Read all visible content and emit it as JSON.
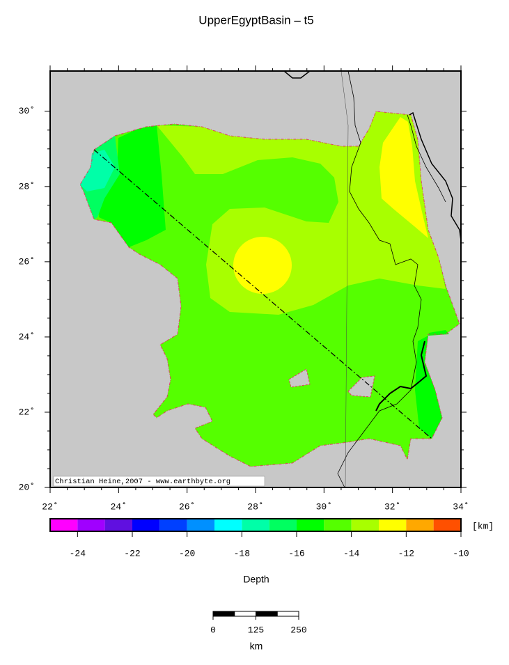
{
  "title": "UpperEgyptBasin – t5",
  "map": {
    "xlim": [
      22,
      34
    ],
    "ylim": [
      20,
      31.07
    ],
    "xticks": [
      {
        "value": 22,
        "label": "22˚"
      },
      {
        "value": 24,
        "label": "24˚"
      },
      {
        "value": 26,
        "label": "26˚"
      },
      {
        "value": 28,
        "label": "28˚"
      },
      {
        "value": 30,
        "label": "30˚"
      },
      {
        "value": 32,
        "label": "32˚"
      },
      {
        "value": 34,
        "label": "34˚"
      }
    ],
    "yticks": [
      {
        "value": 20,
        "label": "20˚"
      },
      {
        "value": 22,
        "label": "22˚"
      },
      {
        "value": 24,
        "label": "24˚"
      },
      {
        "value": 26,
        "label": "26˚"
      },
      {
        "value": 28,
        "label": "28˚"
      },
      {
        "value": 30,
        "label": "30˚"
      }
    ],
    "credit": "Christian Heine,2007 - www.earthbyte.org"
  },
  "colorbar": {
    "range": [
      -25,
      -10
    ],
    "colors": [
      "#ff00ff",
      "#a000ff",
      "#6010e0",
      "#0000ff",
      "#0040ff",
      "#0090ff",
      "#00ffff",
      "#00ffa8",
      "#00ff60",
      "#00ff00",
      "#55ff00",
      "#a8ff00",
      "#ffff00",
      "#ffa800",
      "#ff5000"
    ],
    "ticks": [
      -24,
      -22,
      -20,
      -18,
      -16,
      -14,
      -12,
      -10
    ],
    "unit": "[km]",
    "label": "Depth"
  },
  "scalebar": {
    "ticks": [
      0,
      125,
      250
    ],
    "unit": "km"
  }
}
